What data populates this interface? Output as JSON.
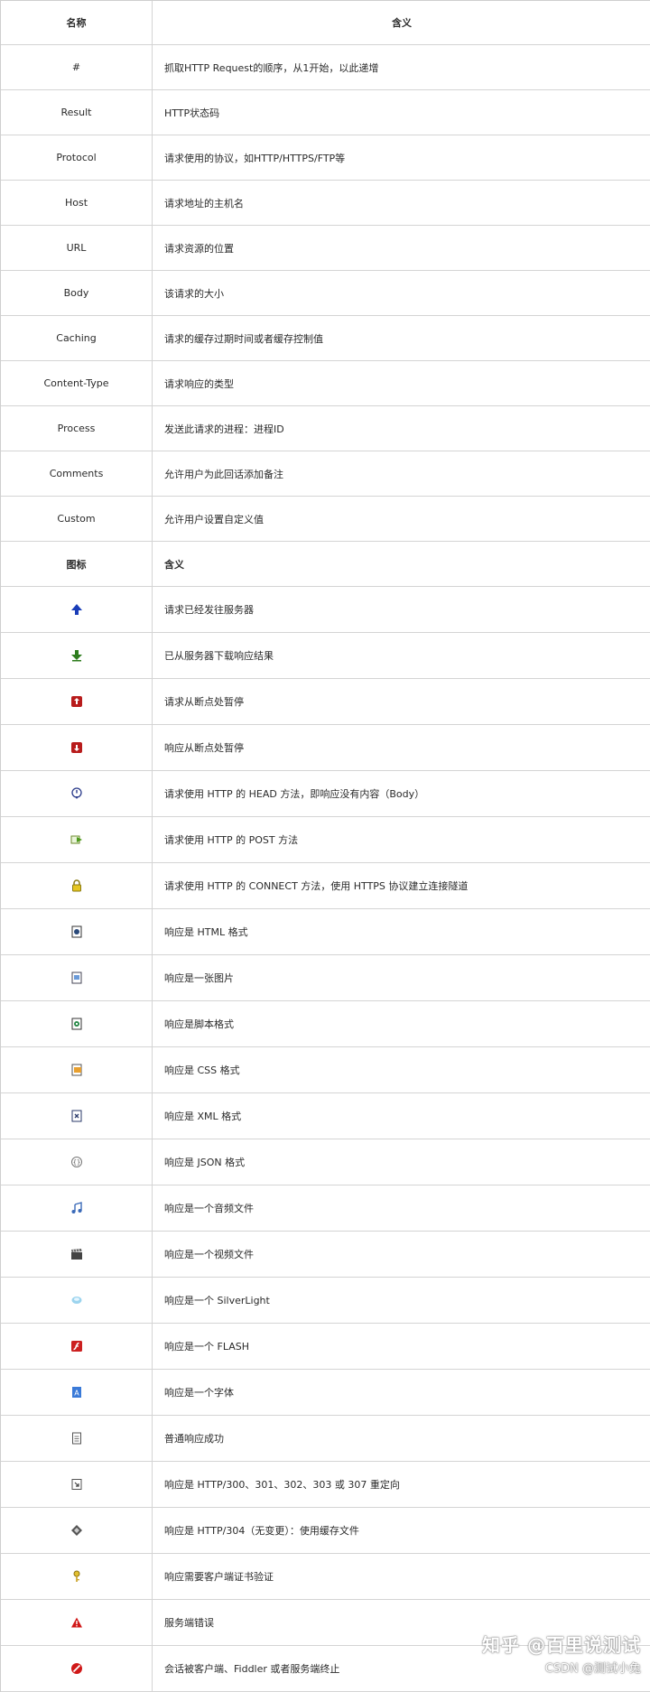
{
  "fields_table": {
    "header": {
      "name": "名称",
      "meaning": "含义"
    },
    "rows": [
      {
        "name": "#",
        "meaning": "抓取HTTP Request的顺序，从1开始，以此递增"
      },
      {
        "name": "Result",
        "meaning": "HTTP状态码"
      },
      {
        "name": "Protocol",
        "meaning": "请求使用的协议，如HTTP/HTTPS/FTP等"
      },
      {
        "name": "Host",
        "meaning": "请求地址的主机名"
      },
      {
        "name": "URL",
        "meaning": "请求资源的位置"
      },
      {
        "name": "Body",
        "meaning": "该请求的大小"
      },
      {
        "name": "Caching",
        "meaning": "请求的缓存过期时间或者缓存控制值"
      },
      {
        "name": "Content-Type",
        "meaning": "请求响应的类型"
      },
      {
        "name": "Process",
        "meaning": "发送此请求的进程：进程ID"
      },
      {
        "name": "Comments",
        "meaning": "允许用户为此回话添加备注"
      },
      {
        "name": "Custom",
        "meaning": "允许用户设置自定义值"
      }
    ]
  },
  "icons_table": {
    "header": {
      "icon": "图标",
      "meaning": "含义"
    },
    "rows": [
      {
        "icon": "up-arrow-icon",
        "meaning": "请求已经发往服务器"
      },
      {
        "icon": "down-arrow-icon",
        "meaning": "已从服务器下载响应结果"
      },
      {
        "icon": "request-breakpoint-icon",
        "meaning": "请求从断点处暂停"
      },
      {
        "icon": "response-breakpoint-icon",
        "meaning": "响应从断点处暂停"
      },
      {
        "icon": "head-method-icon",
        "meaning": "请求使用 HTTP 的 HEAD 方法，即响应没有内容（Body）"
      },
      {
        "icon": "post-method-icon",
        "meaning": "请求使用 HTTP 的 POST 方法"
      },
      {
        "icon": "lock-icon",
        "meaning": "请求使用 HTTP 的 CONNECT 方法，使用 HTTPS 协议建立连接隧道"
      },
      {
        "icon": "html-file-icon",
        "meaning": "响应是 HTML 格式"
      },
      {
        "icon": "image-file-icon",
        "meaning": "响应是一张图片"
      },
      {
        "icon": "script-file-icon",
        "meaning": "响应是脚本格式"
      },
      {
        "icon": "css-file-icon",
        "meaning": "响应是 CSS 格式"
      },
      {
        "icon": "xml-file-icon",
        "meaning": "响应是 XML 格式"
      },
      {
        "icon": "json-icon",
        "meaning": "响应是 JSON 格式"
      },
      {
        "icon": "audio-note-icon",
        "meaning": "响应是一个音频文件"
      },
      {
        "icon": "video-clapper-icon",
        "meaning": "响应是一个视频文件"
      },
      {
        "icon": "silverlight-icon",
        "meaning": "响应是一个 SilverLight"
      },
      {
        "icon": "flash-icon",
        "meaning": "响应是一个 FLASH"
      },
      {
        "icon": "font-file-icon",
        "meaning": "响应是一个字体"
      },
      {
        "icon": "plain-document-icon",
        "meaning": "普通响应成功"
      },
      {
        "icon": "redirect-icon",
        "meaning": "响应是 HTTP/300、301、302、303 或 307 重定向"
      },
      {
        "icon": "cache-diamond-icon",
        "meaning": "响应是 HTTP/304（无变更）：使用缓存文件"
      },
      {
        "icon": "key-icon",
        "meaning": "响应需要客户端证书验证"
      },
      {
        "icon": "warning-triangle-icon",
        "meaning": "服务端错误"
      },
      {
        "icon": "stop-circle-icon",
        "meaning": "会话被客户端、Fiddler 或者服务端终止"
      }
    ]
  },
  "watermark": {
    "line1": "知乎 @百里说测试",
    "line2": "CSDN @测试小兔"
  }
}
